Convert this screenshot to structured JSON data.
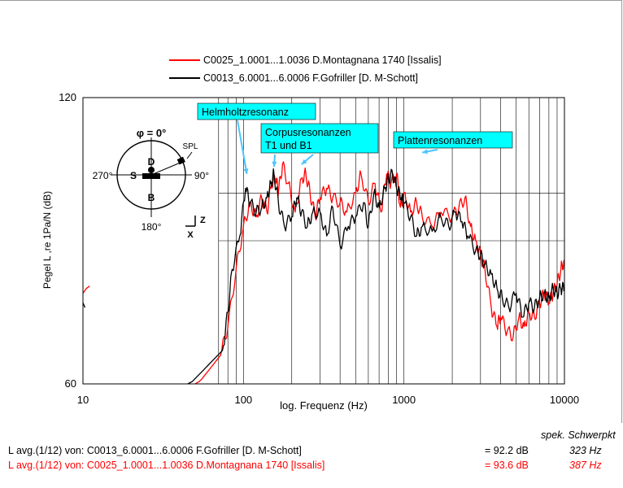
{
  "chart_data": {
    "type": "line",
    "ylabel": "Pegel L ,re 1Pa/N (dB)",
    "xlabel": "log. Frequenz (Hz)",
    "xscale": "log",
    "xlim": [
      10,
      10000
    ],
    "ylim": [
      60,
      120
    ],
    "x_ticks": [
      10,
      100,
      1000,
      10000
    ],
    "x_tick_labels": [
      "10",
      "100",
      "1000",
      "10000"
    ],
    "y_ticks": [
      60,
      120
    ],
    "y_tick_labels": [
      "60",
      "120"
    ],
    "y_gridlines": [
      90,
      100
    ],
    "legend_position": "top",
    "series": [
      {
        "name": "C0025_1.0001...1.0036 D.Montagnana 1740 [Issalis]",
        "color": "#ff0000",
        "points": [
          [
            10,
            79
          ],
          [
            10.5,
            80
          ],
          [
            11,
            80.5
          ],
          [
            50,
            60
          ],
          [
            53,
            60.5
          ],
          [
            55,
            61
          ],
          [
            72,
            66
          ],
          [
            80,
            72
          ],
          [
            90,
            84
          ],
          [
            100,
            93
          ],
          [
            110,
            98
          ],
          [
            120,
            95
          ],
          [
            130,
            99
          ],
          [
            140,
            96
          ],
          [
            150,
            102
          ],
          [
            160,
            103
          ],
          [
            165,
            100
          ],
          [
            175,
            106
          ],
          [
            190,
            102
          ],
          [
            210,
            96
          ],
          [
            230,
            103
          ],
          [
            245,
            104
          ],
          [
            260,
            100
          ],
          [
            280,
            95
          ],
          [
            300,
            99
          ],
          [
            330,
            101
          ],
          [
            360,
            99
          ],
          [
            400,
            98
          ],
          [
            440,
            96
          ],
          [
            500,
            100
          ],
          [
            540,
            104
          ],
          [
            600,
            98
          ],
          [
            660,
            102
          ],
          [
            720,
            96
          ],
          [
            780,
            104
          ],
          [
            830,
            102
          ],
          [
            900,
            104
          ],
          [
            950,
            97
          ],
          [
            1000,
            100
          ],
          [
            1100,
            96
          ],
          [
            1200,
            98
          ],
          [
            1300,
            95
          ],
          [
            1500,
            93
          ],
          [
            1700,
            96
          ],
          [
            2000,
            95
          ],
          [
            2200,
            97
          ],
          [
            2400,
            99
          ],
          [
            2600,
            93
          ],
          [
            2800,
            90
          ],
          [
            3000,
            87
          ],
          [
            3200,
            84
          ],
          [
            3500,
            76
          ],
          [
            3800,
            72
          ],
          [
            4000,
            74
          ],
          [
            4400,
            71
          ],
          [
            4800,
            70
          ],
          [
            5200,
            74
          ],
          [
            5600,
            72
          ],
          [
            6000,
            75
          ],
          [
            6500,
            74
          ],
          [
            7000,
            77
          ],
          [
            7500,
            79
          ],
          [
            8000,
            77
          ],
          [
            8500,
            79
          ],
          [
            9000,
            81
          ],
          [
            9500,
            84
          ],
          [
            10000,
            86
          ]
        ]
      },
      {
        "name": "C0013_6.0001...6.0006 F.Gofriller [D. M-Schott]",
        "color": "#000000",
        "points": [
          [
            10,
            77
          ],
          [
            10.3,
            76
          ],
          [
            45,
            60
          ],
          [
            48,
            60.5
          ],
          [
            74,
            67
          ],
          [
            80,
            75
          ],
          [
            85,
            84
          ],
          [
            95,
            91
          ],
          [
            103,
            101
          ],
          [
            110,
            98
          ],
          [
            120,
            96
          ],
          [
            130,
            97
          ],
          [
            140,
            99
          ],
          [
            148,
            102
          ],
          [
            155,
            104
          ],
          [
            165,
            98
          ],
          [
            180,
            93
          ],
          [
            200,
            95
          ],
          [
            215,
            99
          ],
          [
            230,
            96
          ],
          [
            250,
            93
          ],
          [
            270,
            96
          ],
          [
            300,
            96
          ],
          [
            330,
            91
          ],
          [
            360,
            97
          ],
          [
            400,
            89
          ],
          [
            450,
            93
          ],
          [
            500,
            95
          ],
          [
            560,
            98
          ],
          [
            600,
            93
          ],
          [
            650,
            100
          ],
          [
            700,
            97
          ],
          [
            760,
            101
          ],
          [
            800,
            103
          ],
          [
            850,
            104
          ],
          [
            900,
            101
          ],
          [
            960,
            99
          ],
          [
            1000,
            98
          ],
          [
            1100,
            95
          ],
          [
            1200,
            91
          ],
          [
            1300,
            93
          ],
          [
            1500,
            92
          ],
          [
            1700,
            95
          ],
          [
            1900,
            93
          ],
          [
            2100,
            96
          ],
          [
            2300,
            94
          ],
          [
            2500,
            91
          ],
          [
            2800,
            88
          ],
          [
            3000,
            87
          ],
          [
            3200,
            85
          ],
          [
            3500,
            83
          ],
          [
            3800,
            80
          ],
          [
            4100,
            78
          ],
          [
            4500,
            76
          ],
          [
            5000,
            79
          ],
          [
            5500,
            74
          ],
          [
            6000,
            77
          ],
          [
            6500,
            76
          ],
          [
            7000,
            78
          ],
          [
            7500,
            79
          ],
          [
            8000,
            78
          ],
          [
            8500,
            80
          ],
          [
            9000,
            79
          ],
          [
            9500,
            80
          ],
          [
            10000,
            80
          ]
        ]
      }
    ],
    "annotations": [
      {
        "text": "Helmholtzresonanz",
        "arrow_to_hz": 105
      },
      {
        "text_lines": [
          "Corpusresonanzen",
          "T1 und B1"
        ],
        "arrow_to_hz": [
          155,
          230
        ]
      },
      {
        "text": "Plattenresonanzen",
        "arrow_to_hz": 1300
      }
    ],
    "annotation_color": "#00ffff",
    "inset_diagram": {
      "phi_label": "φ = 0°",
      "angle_labels": [
        "270°",
        "90°",
        "180°"
      ],
      "letters": [
        "D",
        "S",
        "B"
      ],
      "spl_label": "SPL",
      "axis_labels": [
        "Z",
        "X"
      ]
    }
  },
  "footer": {
    "schwerpkt_header": "spek. Schwerpkt",
    "rows": [
      {
        "label": "L avg.(1/12) von: C0013_6.0001...6.0006 F.Gofriller [D. M-Schott]",
        "db": "= 92.2 dB",
        "hz": "323 Hz",
        "color": "#000000"
      },
      {
        "label": "L avg.(1/12) von: C0025_1.0001...1.0036 D.Montagnana 1740 [Issalis]",
        "db": "= 93.6 dB",
        "hz": "387 Hz",
        "color": "#ff0000"
      }
    ]
  }
}
